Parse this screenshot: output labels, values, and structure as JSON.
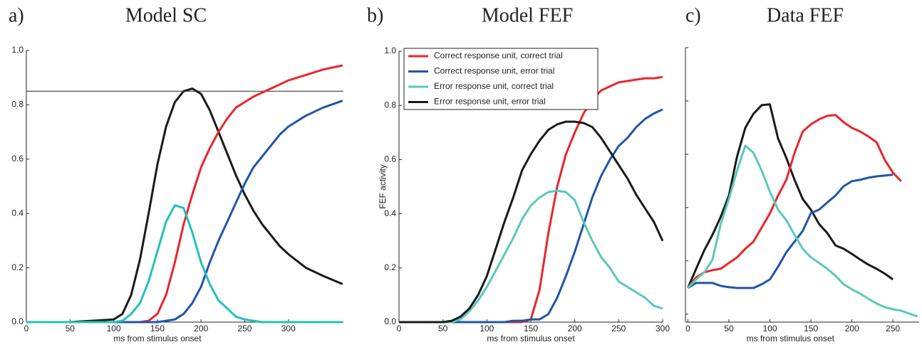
{
  "chart_data": [
    {
      "type": "line",
      "label": "a)",
      "title": "Model SC",
      "xlabel": "ms from stimulus onset",
      "x": [
        0,
        50,
        100,
        110,
        120,
        130,
        140,
        150,
        160,
        170,
        180,
        190,
        200,
        210,
        220,
        230,
        240,
        250,
        260,
        270,
        280,
        290,
        300,
        320,
        340,
        362
      ],
      "series": [
        {
          "color": "#1a1a1a",
          "values": [
            0,
            0,
            0.01,
            0.03,
            0.1,
            0.23,
            0.4,
            0.58,
            0.72,
            0.81,
            0.85,
            0.86,
            0.84,
            0.78,
            0.7,
            0.62,
            0.54,
            0.47,
            0.41,
            0.36,
            0.32,
            0.28,
            0.25,
            0.2,
            0.17,
            0.14
          ]
        },
        {
          "color": "#e8262b",
          "values": [
            0,
            0,
            0,
            0,
            0,
            0,
            0.005,
            0.03,
            0.1,
            0.22,
            0.36,
            0.47,
            0.57,
            0.64,
            0.7,
            0.75,
            0.79,
            0.81,
            0.83,
            0.845,
            0.86,
            0.875,
            0.89,
            0.91,
            0.93,
            0.945
          ]
        },
        {
          "color": "#1f56a6",
          "values": [
            0,
            0,
            0,
            0,
            0,
            0,
            0,
            0,
            0.005,
            0.01,
            0.03,
            0.07,
            0.13,
            0.22,
            0.3,
            0.37,
            0.44,
            0.51,
            0.57,
            0.61,
            0.65,
            0.69,
            0.72,
            0.76,
            0.79,
            0.815
          ]
        },
        {
          "color": "#25bfbd",
          "values": [
            0,
            0,
            0,
            0.005,
            0.03,
            0.07,
            0.15,
            0.26,
            0.37,
            0.43,
            0.42,
            0.33,
            0.22,
            0.14,
            0.08,
            0.05,
            0.02,
            0.01,
            0.005,
            0,
            0,
            0,
            0,
            0,
            0,
            0
          ]
        }
      ],
      "threshold": 0.85,
      "xlim": [
        0,
        363
      ],
      "ylim": [
        0,
        1
      ],
      "xticks": [
        0,
        50,
        100,
        150,
        200,
        250,
        300
      ],
      "yticks": [
        {
          "value": 0,
          "label": "0.0"
        },
        0.2,
        0.4,
        0.6,
        0.8,
        {
          "value": 1,
          "label": "1.0"
        }
      ]
    },
    {
      "type": "line",
      "label": "b)",
      "title": "Model FEF",
      "xlabel": "ms from stimulus onset",
      "ylabel": "FEF activity",
      "x": [
        0,
        50,
        60,
        70,
        80,
        90,
        100,
        110,
        120,
        130,
        140,
        150,
        160,
        170,
        180,
        190,
        200,
        210,
        220,
        230,
        240,
        250,
        260,
        270,
        280,
        290,
        300
      ],
      "series": [
        {
          "name": "Correct response unit, correct trial",
          "color": "#e8262b",
          "values": [
            0,
            0,
            0,
            0,
            0,
            0,
            0,
            0,
            0,
            0,
            0,
            0.01,
            0.12,
            0.33,
            0.5,
            0.62,
            0.7,
            0.77,
            0.82,
            0.855,
            0.87,
            0.885,
            0.89,
            0.895,
            0.9,
            0.9,
            0.905
          ]
        },
        {
          "name": "Correct response unit, error trial",
          "color": "#1f56a6",
          "values": [
            0,
            0,
            0,
            0,
            0,
            0,
            0,
            0,
            0,
            0.005,
            0.005,
            0.01,
            0.01,
            0.03,
            0.09,
            0.17,
            0.26,
            0.36,
            0.46,
            0.54,
            0.6,
            0.65,
            0.68,
            0.72,
            0.75,
            0.77,
            0.785
          ]
        },
        {
          "name": "Error response unit, correct trial",
          "color": "#5bc8b8",
          "values": [
            0,
            0,
            0,
            0.01,
            0.04,
            0.08,
            0.13,
            0.19,
            0.25,
            0.31,
            0.38,
            0.43,
            0.46,
            0.48,
            0.485,
            0.48,
            0.45,
            0.37,
            0.3,
            0.24,
            0.2,
            0.15,
            0.13,
            0.11,
            0.09,
            0.06,
            0.05
          ]
        },
        {
          "name": "Error response unit, error trial",
          "color": "#1a1a1a",
          "values": [
            0,
            0,
            0.005,
            0.02,
            0.05,
            0.1,
            0.17,
            0.27,
            0.37,
            0.46,
            0.56,
            0.62,
            0.67,
            0.71,
            0.73,
            0.74,
            0.74,
            0.735,
            0.72,
            0.68,
            0.63,
            0.58,
            0.53,
            0.47,
            0.42,
            0.37,
            0.3
          ]
        }
      ],
      "legend": "upper left",
      "xlim": [
        0,
        300
      ],
      "ylim": [
        0,
        1
      ],
      "xticks": [
        0,
        50,
        100,
        150,
        200,
        250,
        300
      ],
      "yticks": [
        {
          "value": 0,
          "label": "0.0"
        },
        0.2,
        0.4,
        0.6,
        0.8,
        {
          "value": 1,
          "label": "1.0"
        }
      ]
    },
    {
      "type": "line",
      "label": "c)",
      "title": "Data FEF",
      "xlabel": "ms from stimulus onset",
      "x": [
        0,
        10,
        20,
        30,
        40,
        50,
        60,
        70,
        80,
        90,
        100,
        110,
        120,
        130,
        140,
        150,
        160,
        170,
        180,
        190,
        200,
        210,
        220,
        230,
        240,
        250,
        260,
        280
      ],
      "series": [
        {
          "color": "#1a1a1a",
          "values": [
            0.098,
            0.17,
            0.24,
            0.298,
            0.365,
            0.445,
            0.592,
            0.699,
            0.752,
            0.784,
            0.787,
            0.659,
            0.586,
            0.504,
            0.432,
            0.392,
            0.338,
            0.304,
            0.258,
            0.245,
            0.226,
            0.205,
            0.186,
            0.17,
            0.152,
            0.13,
            null,
            null
          ]
        },
        {
          "color": "#e8262b",
          "values": [
            0.098,
            0.138,
            0.157,
            0.165,
            0.17,
            0.192,
            0.213,
            0.245,
            0.272,
            0.325,
            0.378,
            0.445,
            0.504,
            0.605,
            0.685,
            0.712,
            0.731,
            0.744,
            0.747,
            0.72,
            0.699,
            0.685,
            0.667,
            0.645,
            0.579,
            0.531,
            0.499,
            null
          ]
        },
        {
          "color": "#1f56a6",
          "values": [
            0.098,
            0.117,
            0.117,
            0.117,
            0.106,
            0.101,
            0.098,
            0.098,
            0.098,
            0.112,
            0.13,
            0.178,
            0.232,
            0.272,
            0.312,
            0.379,
            0.392,
            0.419,
            0.445,
            0.48,
            0.499,
            0.504,
            0.512,
            0.517,
            0.52,
            0.523,
            null,
            null
          ]
        },
        {
          "color": "#5bc8b8",
          "values": [
            0.098,
            0.13,
            0.157,
            0.205,
            0.338,
            0.432,
            0.539,
            0.632,
            0.605,
            0.539,
            0.459,
            0.392,
            0.352,
            0.298,
            0.245,
            0.213,
            0.192,
            0.17,
            0.144,
            0.112,
            0.093,
            0.077,
            0.058,
            0.04,
            0.026,
            0.018,
            0.013,
            -0.009
          ]
        }
      ],
      "xlim": [
        -3,
        282
      ],
      "ylim": [
        -0.03,
        1
      ],
      "xticks": [
        0,
        50,
        100,
        150,
        200,
        250
      ],
      "yticks": [
        0,
        0.2,
        0.4,
        0.6,
        0.8,
        1
      ],
      "ytick_labels": false
    }
  ]
}
